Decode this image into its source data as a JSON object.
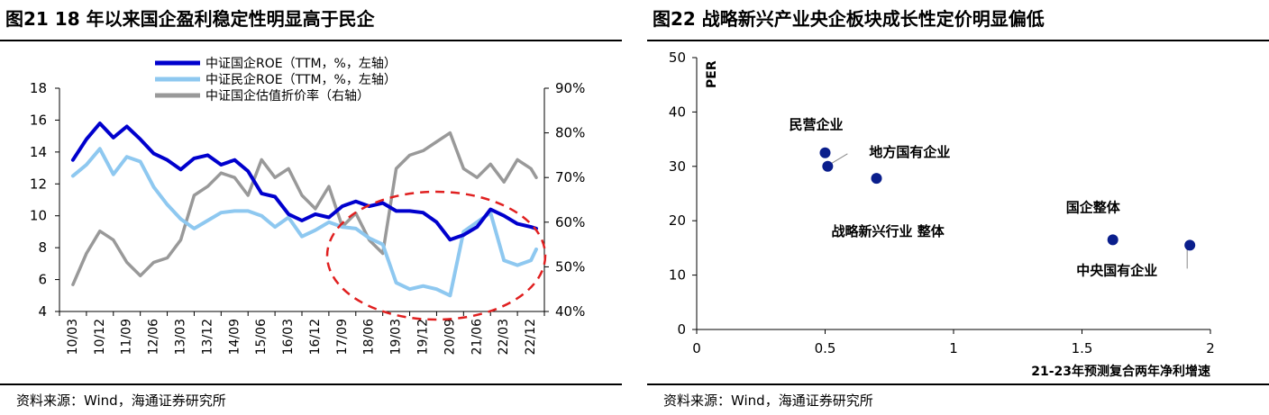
{
  "left": {
    "title": "图21 18 年以来国企盈利稳定性明显高于民企",
    "source": "资料来源：Wind，海通证券研究所"
  },
  "right": {
    "title": "图22 战略新兴产业央企板块成长性定价明显偏低",
    "source": "资料来源：Wind，海通证券研究所"
  },
  "colors": {
    "soe": "#0000CD",
    "private": "#8EC8F0",
    "valuation": "#999999",
    "marker": "#0A1E8C",
    "ellipse": "#E02020"
  },
  "chart_data": [
    {
      "type": "line",
      "title": "图21 18 年以来国企盈利稳定性明显高于民企",
      "categories": [
        "10/03",
        "10/12",
        "11/09",
        "12/06",
        "13/03",
        "13/12",
        "14/09",
        "15/06",
        "16/03",
        "16/12",
        "17/09",
        "18/06",
        "19/03",
        "19/12",
        "20/09",
        "21/06",
        "22/03",
        "22/12"
      ],
      "y_left": {
        "min": 4,
        "max": 18,
        "ticks": [
          "4",
          "6",
          "8",
          "10",
          "12",
          "14",
          "16",
          "18"
        ]
      },
      "y_right": {
        "min": 40,
        "max": 90,
        "ticks": [
          "40%",
          "50%",
          "60%",
          "70%",
          "80%",
          "90%"
        ]
      },
      "legend": [
        "中证国企ROE（TTM，%，左轴）",
        "中证民企ROE（TTM，%，左轴）",
        "中证国企估值折价率（右轴）"
      ],
      "series": [
        {
          "name": "中证国企ROE（TTM，%，左轴）",
          "axis": "left",
          "x": [
            0,
            0.5,
            1,
            1.5,
            2,
            2.5,
            3,
            3.5,
            4,
            4.5,
            5,
            5.5,
            6,
            6.5,
            7,
            7.5,
            8,
            8.5,
            9,
            9.5,
            10,
            10.5,
            11,
            11.5,
            12,
            12.5,
            13,
            13.5,
            14,
            14.5,
            15,
            15.5,
            16,
            16.5,
            17,
            17.2
          ],
          "values": [
            13.5,
            14.8,
            15.8,
            14.9,
            15.6,
            14.8,
            13.9,
            13.5,
            12.9,
            13.6,
            13.8,
            13.2,
            13.5,
            12.8,
            11.4,
            11.2,
            10.1,
            9.7,
            10.1,
            9.9,
            10.6,
            10.9,
            10.6,
            10.8,
            10.3,
            10.3,
            10.2,
            9.6,
            8.5,
            8.8,
            9.3,
            10.4,
            10.0,
            9.5,
            9.3,
            9.2
          ]
        },
        {
          "name": "中证民企ROE（TTM，%，左轴）",
          "axis": "left",
          "x": [
            0,
            0.5,
            1,
            1.5,
            2,
            2.5,
            3,
            3.5,
            4,
            4.5,
            5,
            5.5,
            6,
            6.5,
            7,
            7.5,
            8,
            8.5,
            9,
            9.5,
            10,
            10.5,
            11,
            11.5,
            12,
            12.5,
            13,
            13.5,
            14,
            14.5,
            15,
            15.5,
            16,
            16.5,
            17,
            17.2
          ],
          "values": [
            12.5,
            13.2,
            14.2,
            12.6,
            13.7,
            13.4,
            11.8,
            10.7,
            9.8,
            9.2,
            9.7,
            10.2,
            10.3,
            10.3,
            10.0,
            9.3,
            9.9,
            8.7,
            9.1,
            9.6,
            9.3,
            9.2,
            8.6,
            8.2,
            5.8,
            5.4,
            5.6,
            5.4,
            5.0,
            9.0,
            9.6,
            10.2,
            7.2,
            6.9,
            7.2,
            7.9
          ]
        },
        {
          "name": "中证国企估值折价率（右轴）",
          "axis": "right",
          "x": [
            0,
            0.5,
            1,
            1.5,
            2,
            2.5,
            3,
            3.5,
            4,
            4.5,
            5,
            5.5,
            6,
            6.5,
            7,
            7.5,
            8,
            8.5,
            9,
            9.5,
            10,
            10.5,
            11,
            11.5,
            12,
            12.5,
            13,
            13.5,
            14,
            14.5,
            15,
            15.5,
            16,
            16.5,
            17,
            17.2
          ],
          "values": [
            46,
            53,
            58,
            56,
            51,
            48,
            51,
            52,
            56,
            66,
            68,
            71,
            70,
            66,
            74,
            70,
            72,
            66,
            63,
            68,
            59,
            62,
            56,
            53,
            72,
            75,
            76,
            78,
            80,
            72,
            70,
            73,
            69,
            74,
            72,
            70
          ]
        }
      ],
      "annotation": "red dashed ellipse"
    },
    {
      "type": "scatter",
      "title": "图22 战略新兴产业央企板块成长性定价明显偏低",
      "xlabel": "21-23年预测复合两年净利增速",
      "ylabel": "PER",
      "xlim": [
        0,
        2
      ],
      "ylim": [
        0,
        50
      ],
      "x_ticks": [
        "0",
        "0.5",
        "1",
        "1.5",
        "2"
      ],
      "y_ticks": [
        "0",
        "10",
        "20",
        "30",
        "40",
        "50"
      ],
      "points": [
        {
          "label": "民营企业",
          "x": 0.5,
          "y": 32.5
        },
        {
          "label": "地方国有企业",
          "x": 0.51,
          "y": 30
        },
        {
          "label": "战略新兴行业 整体",
          "x": 0.7,
          "y": 27.8
        },
        {
          "label": "国企整体",
          "x": 1.62,
          "y": 16.5
        },
        {
          "label": "中央国有企业",
          "x": 1.92,
          "y": 15.5
        }
      ]
    }
  ]
}
